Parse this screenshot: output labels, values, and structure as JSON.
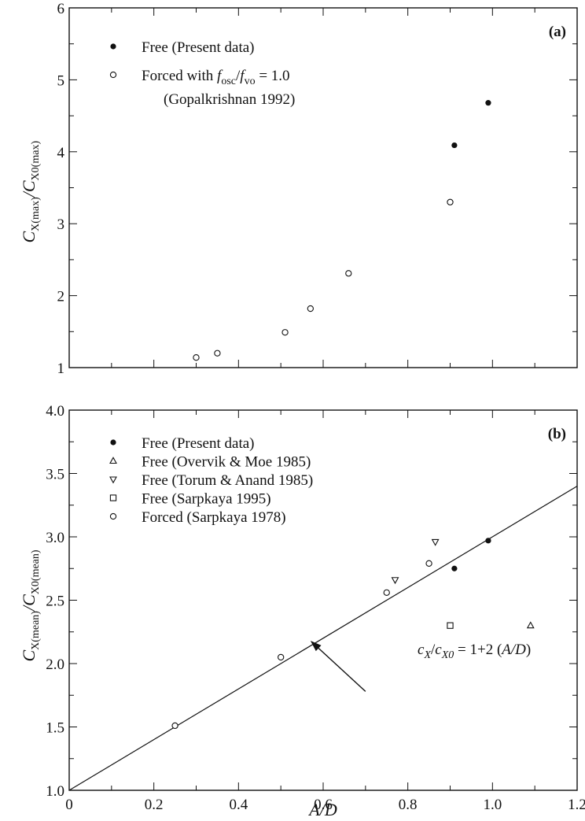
{
  "chart_data": [
    {
      "type": "scatter",
      "panel_label": "(a)",
      "ylabel": "C_X(max)/C_X0(max)",
      "ylabel_parts": {
        "base1": "C",
        "sub1": "X",
        "sub1b": "(max)",
        "slash": "/",
        "base2": "C",
        "sub2": "X0",
        "sub2b": "(max)"
      },
      "xlim": [
        0,
        1.2
      ],
      "ylim": [
        1,
        6
      ],
      "y_ticks": [
        "1",
        "2",
        "3",
        "4",
        "5",
        "6"
      ],
      "legend_position": "top-left",
      "series": [
        {
          "name": "Free (Present data)",
          "marker": "filled-circle",
          "legend_label": "Free (Present data)",
          "x": [
            0.91,
            0.99
          ],
          "y": [
            4.09,
            4.68
          ]
        },
        {
          "name": "Forced with f_osc/f_vo = 1.0 (Gopalkrishnan 1992)",
          "marker": "open-circle",
          "legend_label_parts": {
            "pre": "Forced with ",
            "f1": "f",
            "s1": "osc",
            "slash": "/",
            "f2": "f",
            "s2": "vo",
            "post": " = 1.0"
          },
          "legend_label_line2": "(Gopalkrishnan 1992)",
          "x": [
            0.3,
            0.35,
            0.51,
            0.57,
            0.66,
            0.9
          ],
          "y": [
            1.14,
            1.2,
            1.49,
            1.82,
            2.31,
            3.3
          ]
        }
      ]
    },
    {
      "type": "scatter",
      "panel_label": "(b)",
      "xlabel": "A/D",
      "ylabel": "C_X(mean)/C_X0(mean)",
      "ylabel_parts": {
        "base1": "C",
        "sub1": "X",
        "sub1b": "(mean)",
        "slash": "/",
        "base2": "C",
        "sub2": "X0",
        "sub2b": "(mean)"
      },
      "xlim": [
        0,
        1.2
      ],
      "ylim": [
        1.0,
        4.0
      ],
      "x_ticks": [
        "0",
        "0.2",
        "0.4",
        "0.6",
        "0.8",
        "1.0",
        "1.2"
      ],
      "y_ticks": [
        "1.0",
        "1.5",
        "2.0",
        "2.5",
        "3.0",
        "3.5",
        "4.0"
      ],
      "legend_position": "top-left",
      "series": [
        {
          "name": "Free (Present data)",
          "marker": "filled-circle",
          "x": [
            0.91,
            0.99
          ],
          "y": [
            2.75,
            2.97
          ]
        },
        {
          "name": "Free (Overvik & Moe 1985)",
          "marker": "triangle-up",
          "x": [
            1.09
          ],
          "y": [
            2.3
          ]
        },
        {
          "name": "Free (Torum & Anand 1985)",
          "marker": "triangle-down",
          "x": [
            0.77,
            0.865
          ],
          "y": [
            2.66,
            2.96
          ]
        },
        {
          "name": "Free (Sarpkaya 1995)",
          "marker": "square",
          "x": [
            0.9
          ],
          "y": [
            2.3
          ]
        },
        {
          "name": "Forced (Sarpkaya 1978)",
          "marker": "open-circle",
          "x": [
            0.25,
            0.5,
            0.75,
            0.85
          ],
          "y": [
            1.51,
            2.05,
            2.56,
            2.79
          ]
        }
      ],
      "line": {
        "intercept": 1,
        "slope": 2
      },
      "annotation": {
        "text": "c_X/c_X0 = 1+2 (A/D)",
        "parts": {
          "c1": "c",
          "s1": "X",
          "slash": "/",
          "c2": "c",
          "s2": "X0",
          "rest": " = 1+2 (",
          "ad": "A/D",
          "close": ")"
        },
        "arrow_to": [
          0.57,
          2.18
        ],
        "arrow_from": [
          0.7,
          1.78
        ]
      }
    }
  ]
}
